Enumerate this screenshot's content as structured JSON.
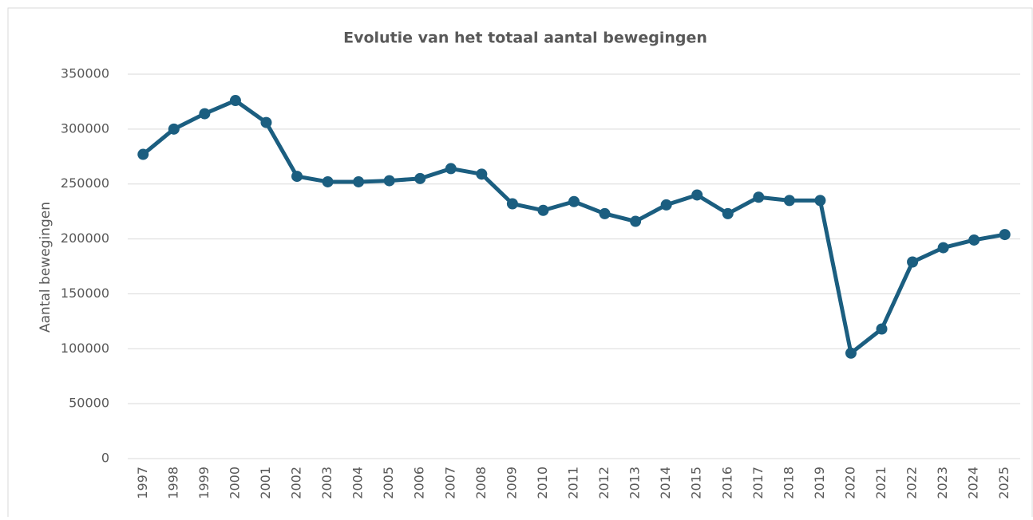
{
  "chart_data": {
    "type": "line",
    "title": "Evolutie van het totaal aantal bewegingen",
    "y_label": "Aantal bewegingen",
    "categories": [
      "1997",
      "1998",
      "1999",
      "2000",
      "2001",
      "2002",
      "2003",
      "2004",
      "2005",
      "2006",
      "2007",
      "2008",
      "2009",
      "2010",
      "2011",
      "2012",
      "2013",
      "2014",
      "2015",
      "2016",
      "2017",
      "2018",
      "2019",
      "2020",
      "2021",
      "2022",
      "2023",
      "2024",
      "2025"
    ],
    "series": [
      {
        "name": "Totaal aantal bewegingen",
        "color": "#1b5e80",
        "values": [
          277000,
          300000,
          314000,
          326000,
          306000,
          257000,
          252000,
          252000,
          253000,
          255000,
          264000,
          259000,
          232000,
          226000,
          234000,
          223000,
          216000,
          231000,
          240000,
          223000,
          238000,
          235000,
          235000,
          96000,
          118000,
          179000,
          192000,
          199000,
          204000
        ]
      }
    ],
    "ylim": [
      0,
      350000
    ],
    "yticks": [
      0,
      50000,
      100000,
      150000,
      200000,
      250000,
      300000,
      350000
    ],
    "grid": true
  }
}
